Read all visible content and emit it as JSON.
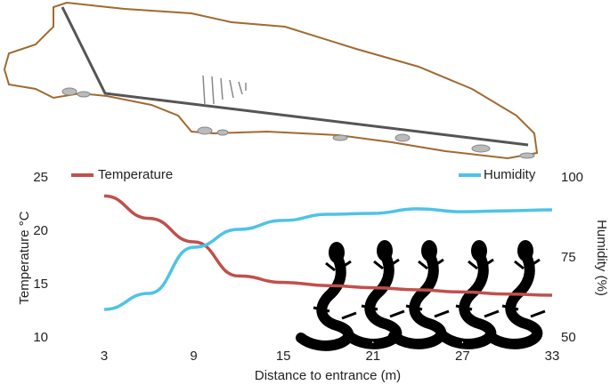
{
  "chart_data": {
    "type": "line",
    "x_label": "Distance to entrance (m)",
    "y_label": "Temperature °C",
    "y2_label": "Humidity (%)",
    "x": [
      3,
      6,
      9,
      12,
      15,
      18,
      21,
      24,
      27,
      30,
      33
    ],
    "series": [
      {
        "name": "Temperature",
        "color": "#c0504d",
        "values": [
          23.3,
          21.2,
          19.0,
          15.8,
          15.2,
          14.9,
          14.7,
          14.5,
          14.3,
          14.1,
          14.0
        ]
      },
      {
        "name": "Humidity",
        "color": "#4ec3e6",
        "axis": "y2",
        "values": [
          58.9,
          63.9,
          78.3,
          83.9,
          86.7,
          88.6,
          88.9,
          90.3,
          89.4,
          89.7,
          90.0
        ]
      }
    ],
    "xlim": [
      3,
      33
    ],
    "xticks": [
      3,
      9,
      15,
      21,
      27,
      33
    ],
    "ylim": [
      10,
      25
    ],
    "yticks": [
      10,
      15,
      20,
      25
    ],
    "y2lim": [
      50,
      100
    ],
    "y2ticks": [
      50,
      75,
      100
    ]
  }
}
